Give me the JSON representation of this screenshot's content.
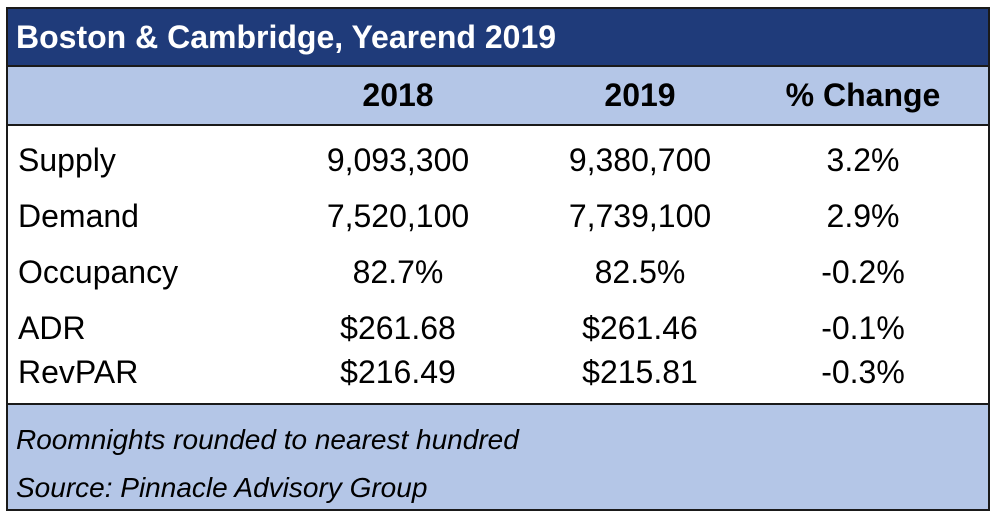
{
  "table": {
    "title": "Boston & Cambridge, Yearend 2019",
    "headers": [
      "",
      "2018",
      "2019",
      "% Change"
    ],
    "rows": [
      {
        "label": "Supply",
        "v2018": "9,093,300",
        "v2019": "9,380,700",
        "change": "3.2%"
      },
      {
        "label": "Demand",
        "v2018": "7,520,100",
        "v2019": "7,739,100",
        "change": "2.9%"
      },
      {
        "label": "Occupancy",
        "v2018": "82.7%",
        "v2019": "82.5%",
        "change": "-0.2%"
      },
      {
        "label": "ADR",
        "v2018": "$261.68",
        "v2019": "$261.46",
        "change": "-0.1%"
      },
      {
        "label": "RevPAR",
        "v2018": "$216.49",
        "v2019": "$215.81",
        "change": "-0.3%"
      }
    ],
    "notes": [
      "Roomnights rounded to nearest hundred",
      "Source: Pinnacle Advisory Group"
    ]
  },
  "colors": {
    "title_bg": "#1f3b7a",
    "header_bg": "#b4c6e7",
    "footer_bg": "#b4c6e7"
  }
}
